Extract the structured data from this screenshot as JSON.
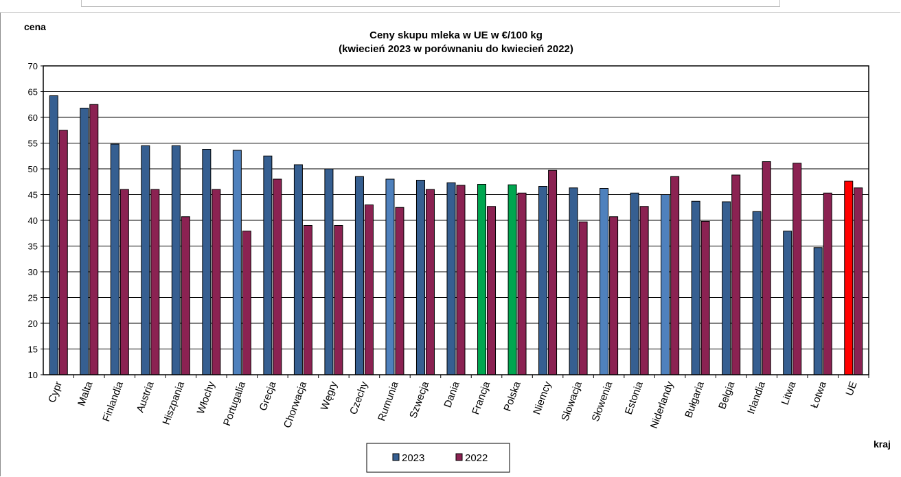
{
  "chart_data": {
    "type": "bar",
    "title": "Ceny skupu mleka  w UE w €/100 kg",
    "subtitle": "(kwiecień  2023  w porównaniu do kwiecień  2022)",
    "ylabel": "cena",
    "xlabel": "kraj",
    "ylim": [
      10,
      70
    ],
    "yticks": [
      10,
      15,
      20,
      25,
      30,
      35,
      40,
      45,
      50,
      55,
      60,
      65,
      70
    ],
    "grid": true,
    "legend_position": "bottom-center",
    "categories": [
      "Cypr",
      "Malta",
      "Finlandia",
      "Austria",
      "Hiszpania",
      "Włochy",
      "Portugalia",
      "Grecja",
      "Chorwacja",
      "Węgry",
      "Czechy",
      "Rumunia",
      "Szwecja",
      "Dania",
      "Francja",
      "Polska",
      "Niemcy",
      "Słowacja",
      "Słowenia",
      "Estonia",
      "Niderlandy",
      "Bułgaria",
      "Belgia",
      "Irlandia",
      "Litwa",
      "Łotwa",
      "UE"
    ],
    "series": [
      {
        "name": "2023",
        "color": "#365f91",
        "values": [
          64.2,
          61.8,
          54.8,
          54.5,
          54.5,
          53.8,
          53.6,
          52.5,
          50.8,
          50.0,
          48.5,
          48.0,
          47.8,
          47.3,
          47.0,
          46.9,
          46.6,
          46.3,
          46.2,
          45.3,
          45.0,
          43.7,
          43.6,
          41.7,
          37.9,
          34.7,
          47.6
        ],
        "highlight_colors": {
          "Portugalia": "#4f81bd",
          "Rumunia": "#4f81bd",
          "Słowenia": "#4f81bd",
          "Niderlandy": "#4f81bd",
          "Francja": "#00a650",
          "Polska": "#00a650",
          "UE": "#ff0000"
        }
      },
      {
        "name": "2022",
        "color": "#8b2252",
        "values": [
          57.5,
          62.5,
          46.0,
          46.0,
          40.7,
          46.0,
          37.9,
          48.0,
          39.0,
          39.0,
          43.0,
          42.5,
          46.0,
          46.8,
          42.7,
          45.3,
          49.7,
          39.7,
          40.7,
          42.7,
          48.5,
          39.8,
          48.8,
          51.4,
          51.1,
          45.3,
          46.3
        ]
      }
    ]
  }
}
